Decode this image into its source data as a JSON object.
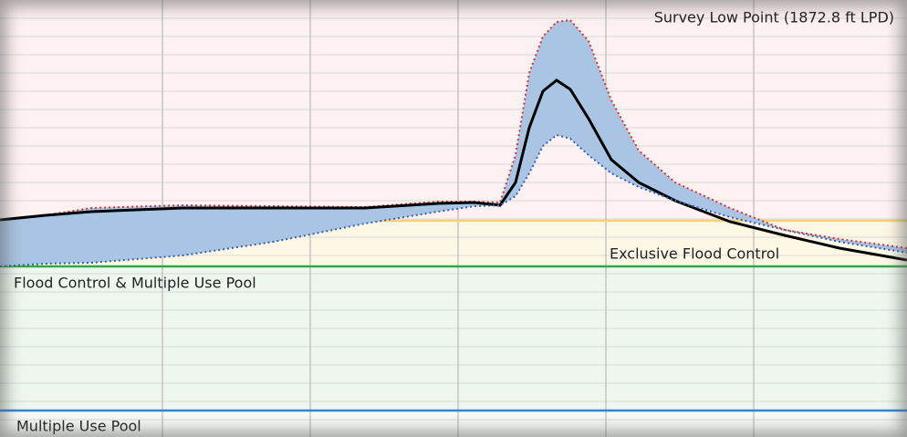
{
  "chart_data": {
    "type": "line",
    "x": [
      0,
      50,
      100,
      200,
      300,
      400,
      480,
      520,
      548,
      565,
      580,
      595,
      610,
      625,
      645,
      670,
      700,
      740,
      800,
      860,
      920,
      994
    ],
    "series": [
      {
        "color": "#e03030",
        "dash": "dotted",
        "values": [
          238,
          243,
          251,
          254,
          253,
          252,
          258,
          258,
          257,
          309,
          399,
          439,
          455,
          457,
          434,
          369,
          314,
          279,
          251,
          227,
          217,
          207
        ]
      },
      {
        "color": "#000000",
        "values": [
          238,
          243,
          247,
          251,
          251,
          251,
          256,
          257,
          254,
          279,
          339,
          379,
          391,
          381,
          349,
          304,
          279,
          259,
          236,
          221,
          207,
          194
        ]
      },
      {
        "color": "#3060c0",
        "dash": "dotted",
        "values": [
          187,
          190,
          191,
          199,
          214,
          234,
          247,
          253,
          254,
          264,
          289,
          319,
          331,
          327,
          309,
          289,
          274,
          259,
          241,
          227,
          214,
          202
        ]
      }
    ],
    "band_color": "#a9c5e3",
    "reference_lines": [
      {
        "value": 237,
        "color": "#f5d27a",
        "zone_color": "#fdf1f1"
      },
      {
        "value": 187,
        "color": "#2eaa44",
        "zone_color": "#fdf8e6"
      },
      {
        "value": 29,
        "color": "#2f86d6",
        "zone_color": "#eef7ee"
      }
    ],
    "annotations": [
      "Survey Low Point (1872.8 ft LPD)",
      "Exclusive Flood Control",
      "Flood Control & Multiple Use Pool",
      "Multiple Use Pool"
    ],
    "xlim": [
      0,
      994
    ],
    "ylim": [
      0,
      479
    ],
    "xticks": [
      178,
      340,
      502,
      664,
      826
    ],
    "yticks": [
      19,
      39,
      59,
      79,
      99,
      119,
      139,
      159,
      179,
      199,
      219,
      239,
      259,
      279,
      299,
      319,
      339,
      359,
      379,
      399,
      419,
      439,
      459
    ],
    "grid": true
  }
}
